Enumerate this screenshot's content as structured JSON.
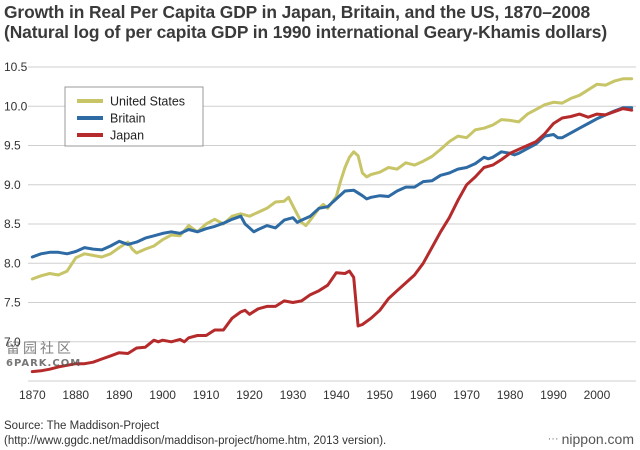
{
  "title_line1": "Growth in Real Per Capita GDP in Japan, Britain, and the US, 1870–2008",
  "title_line2": "(Natural log of per capita GDP in 1990 international Geary-Khamis dollars)",
  "source_line1": "Source: The Maddison-Project",
  "source_line2": "(http://www.ggdc.net/maddison/maddison-project/home.htm, 2013 version).",
  "credit": "nippon.com",
  "credit_icon": "interpunct-icon",
  "watermark_line1": "留园社区",
  "watermark_line2": "6PARK.COM",
  "chart_data": {
    "type": "line",
    "title": "Growth in Real Per Capita GDP in Japan, Britain, and the US, 1870–2008",
    "subtitle": "(Natural log of per capita GDP in 1990 international Geary-Khamis dollars)",
    "xlabel": "",
    "ylabel": "",
    "xlim": [
      1869,
      2009
    ],
    "ylim": [
      6.5,
      10.5
    ],
    "x_ticks": [
      1870,
      1880,
      1890,
      1900,
      1910,
      1920,
      1930,
      1940,
      1950,
      1960,
      1970,
      1980,
      1990,
      2000
    ],
    "y_ticks": [
      7.0,
      7.5,
      8.0,
      8.5,
      9.0,
      9.5,
      10.0,
      10.5
    ],
    "grid": "horizontal",
    "legend_position": "top-left",
    "series": [
      {
        "name": "United States",
        "color": "#c7c567",
        "points": [
          [
            1870,
            7.8
          ],
          [
            1872,
            7.84
          ],
          [
            1874,
            7.87
          ],
          [
            1876,
            7.85
          ],
          [
            1878,
            7.9
          ],
          [
            1880,
            8.07
          ],
          [
            1882,
            8.12
          ],
          [
            1884,
            8.1
          ],
          [
            1886,
            8.08
          ],
          [
            1888,
            8.12
          ],
          [
            1890,
            8.2
          ],
          [
            1892,
            8.27
          ],
          [
            1893,
            8.18
          ],
          [
            1894,
            8.13
          ],
          [
            1896,
            8.18
          ],
          [
            1898,
            8.22
          ],
          [
            1900,
            8.3
          ],
          [
            1902,
            8.36
          ],
          [
            1904,
            8.35
          ],
          [
            1906,
            8.48
          ],
          [
            1908,
            8.4
          ],
          [
            1910,
            8.5
          ],
          [
            1912,
            8.56
          ],
          [
            1914,
            8.5
          ],
          [
            1916,
            8.6
          ],
          [
            1918,
            8.63
          ],
          [
            1920,
            8.6
          ],
          [
            1922,
            8.65
          ],
          [
            1924,
            8.7
          ],
          [
            1926,
            8.78
          ],
          [
            1928,
            8.79
          ],
          [
            1929,
            8.84
          ],
          [
            1930,
            8.73
          ],
          [
            1932,
            8.52
          ],
          [
            1933,
            8.48
          ],
          [
            1934,
            8.55
          ],
          [
            1936,
            8.7
          ],
          [
            1937,
            8.75
          ],
          [
            1938,
            8.7
          ],
          [
            1940,
            8.85
          ],
          [
            1941,
            9.05
          ],
          [
            1942,
            9.22
          ],
          [
            1943,
            9.35
          ],
          [
            1944,
            9.42
          ],
          [
            1945,
            9.37
          ],
          [
            1946,
            9.15
          ],
          [
            1947,
            9.1
          ],
          [
            1948,
            9.13
          ],
          [
            1950,
            9.16
          ],
          [
            1952,
            9.22
          ],
          [
            1954,
            9.2
          ],
          [
            1956,
            9.28
          ],
          [
            1958,
            9.25
          ],
          [
            1960,
            9.3
          ],
          [
            1962,
            9.36
          ],
          [
            1964,
            9.45
          ],
          [
            1966,
            9.55
          ],
          [
            1968,
            9.62
          ],
          [
            1970,
            9.6
          ],
          [
            1972,
            9.7
          ],
          [
            1974,
            9.72
          ],
          [
            1976,
            9.76
          ],
          [
            1978,
            9.83
          ],
          [
            1980,
            9.82
          ],
          [
            1982,
            9.8
          ],
          [
            1984,
            9.9
          ],
          [
            1986,
            9.96
          ],
          [
            1988,
            10.02
          ],
          [
            1990,
            10.05
          ],
          [
            1992,
            10.04
          ],
          [
            1994,
            10.1
          ],
          [
            1996,
            10.14
          ],
          [
            1998,
            10.21
          ],
          [
            2000,
            10.28
          ],
          [
            2002,
            10.27
          ],
          [
            2004,
            10.32
          ],
          [
            2006,
            10.35
          ],
          [
            2008,
            10.35
          ]
        ]
      },
      {
        "name": "Britain",
        "color": "#2e6aa4",
        "points": [
          [
            1870,
            8.08
          ],
          [
            1872,
            8.12
          ],
          [
            1874,
            8.14
          ],
          [
            1876,
            8.14
          ],
          [
            1878,
            8.12
          ],
          [
            1880,
            8.15
          ],
          [
            1882,
            8.2
          ],
          [
            1884,
            8.18
          ],
          [
            1886,
            8.17
          ],
          [
            1888,
            8.22
          ],
          [
            1890,
            8.28
          ],
          [
            1892,
            8.24
          ],
          [
            1894,
            8.27
          ],
          [
            1896,
            8.32
          ],
          [
            1898,
            8.35
          ],
          [
            1900,
            8.38
          ],
          [
            1902,
            8.4
          ],
          [
            1904,
            8.38
          ],
          [
            1906,
            8.43
          ],
          [
            1908,
            8.4
          ],
          [
            1910,
            8.44
          ],
          [
            1912,
            8.47
          ],
          [
            1914,
            8.51
          ],
          [
            1916,
            8.56
          ],
          [
            1918,
            8.6
          ],
          [
            1919,
            8.5
          ],
          [
            1920,
            8.45
          ],
          [
            1921,
            8.4
          ],
          [
            1922,
            8.43
          ],
          [
            1924,
            8.48
          ],
          [
            1926,
            8.45
          ],
          [
            1928,
            8.55
          ],
          [
            1930,
            8.58
          ],
          [
            1931,
            8.52
          ],
          [
            1932,
            8.55
          ],
          [
            1934,
            8.6
          ],
          [
            1936,
            8.7
          ],
          [
            1938,
            8.72
          ],
          [
            1940,
            8.82
          ],
          [
            1942,
            8.92
          ],
          [
            1944,
            8.93
          ],
          [
            1946,
            8.86
          ],
          [
            1947,
            8.82
          ],
          [
            1948,
            8.84
          ],
          [
            1950,
            8.86
          ],
          [
            1952,
            8.85
          ],
          [
            1954,
            8.92
          ],
          [
            1956,
            8.97
          ],
          [
            1958,
            8.97
          ],
          [
            1960,
            9.04
          ],
          [
            1962,
            9.05
          ],
          [
            1964,
            9.12
          ],
          [
            1966,
            9.15
          ],
          [
            1968,
            9.2
          ],
          [
            1970,
            9.22
          ],
          [
            1972,
            9.27
          ],
          [
            1974,
            9.35
          ],
          [
            1975,
            9.33
          ],
          [
            1976,
            9.35
          ],
          [
            1978,
            9.42
          ],
          [
            1980,
            9.4
          ],
          [
            1981,
            9.38
          ],
          [
            1982,
            9.4
          ],
          [
            1984,
            9.46
          ],
          [
            1986,
            9.52
          ],
          [
            1988,
            9.62
          ],
          [
            1990,
            9.64
          ],
          [
            1991,
            9.6
          ],
          [
            1992,
            9.6
          ],
          [
            1994,
            9.66
          ],
          [
            1996,
            9.72
          ],
          [
            1998,
            9.78
          ],
          [
            2000,
            9.84
          ],
          [
            2002,
            9.89
          ],
          [
            2004,
            9.94
          ],
          [
            2006,
            9.98
          ],
          [
            2008,
            9.98
          ]
        ]
      },
      {
        "name": "Japan",
        "color": "#b52b2b",
        "points": [
          [
            1870,
            6.62
          ],
          [
            1872,
            6.63
          ],
          [
            1874,
            6.65
          ],
          [
            1876,
            6.68
          ],
          [
            1878,
            6.7
          ],
          [
            1880,
            6.72
          ],
          [
            1882,
            6.72
          ],
          [
            1884,
            6.74
          ],
          [
            1886,
            6.78
          ],
          [
            1888,
            6.82
          ],
          [
            1890,
            6.86
          ],
          [
            1892,
            6.85
          ],
          [
            1894,
            6.92
          ],
          [
            1896,
            6.93
          ],
          [
            1898,
            7.02
          ],
          [
            1899,
            7.0
          ],
          [
            1900,
            7.02
          ],
          [
            1902,
            7.0
          ],
          [
            1904,
            7.03
          ],
          [
            1905,
            7.0
          ],
          [
            1906,
            7.05
          ],
          [
            1908,
            7.08
          ],
          [
            1910,
            7.08
          ],
          [
            1912,
            7.15
          ],
          [
            1914,
            7.15
          ],
          [
            1916,
            7.3
          ],
          [
            1918,
            7.38
          ],
          [
            1919,
            7.4
          ],
          [
            1920,
            7.35
          ],
          [
            1922,
            7.42
          ],
          [
            1924,
            7.45
          ],
          [
            1926,
            7.45
          ],
          [
            1928,
            7.52
          ],
          [
            1930,
            7.5
          ],
          [
            1932,
            7.52
          ],
          [
            1934,
            7.6
          ],
          [
            1936,
            7.65
          ],
          [
            1938,
            7.72
          ],
          [
            1939,
            7.8
          ],
          [
            1940,
            7.88
          ],
          [
            1942,
            7.87
          ],
          [
            1943,
            7.9
          ],
          [
            1944,
            7.82
          ],
          [
            1945,
            7.2
          ],
          [
            1946,
            7.22
          ],
          [
            1948,
            7.3
          ],
          [
            1950,
            7.4
          ],
          [
            1952,
            7.55
          ],
          [
            1954,
            7.65
          ],
          [
            1956,
            7.75
          ],
          [
            1958,
            7.85
          ],
          [
            1960,
            8.0
          ],
          [
            1962,
            8.2
          ],
          [
            1964,
            8.4
          ],
          [
            1966,
            8.58
          ],
          [
            1968,
            8.8
          ],
          [
            1970,
            9.0
          ],
          [
            1972,
            9.1
          ],
          [
            1974,
            9.22
          ],
          [
            1976,
            9.25
          ],
          [
            1978,
            9.32
          ],
          [
            1980,
            9.4
          ],
          [
            1982,
            9.45
          ],
          [
            1984,
            9.5
          ],
          [
            1986,
            9.55
          ],
          [
            1988,
            9.65
          ],
          [
            1990,
            9.78
          ],
          [
            1992,
            9.85
          ],
          [
            1994,
            9.87
          ],
          [
            1996,
            9.9
          ],
          [
            1998,
            9.86
          ],
          [
            2000,
            9.9
          ],
          [
            2002,
            9.89
          ],
          [
            2004,
            9.93
          ],
          [
            2006,
            9.97
          ],
          [
            2008,
            9.95
          ]
        ]
      }
    ]
  }
}
